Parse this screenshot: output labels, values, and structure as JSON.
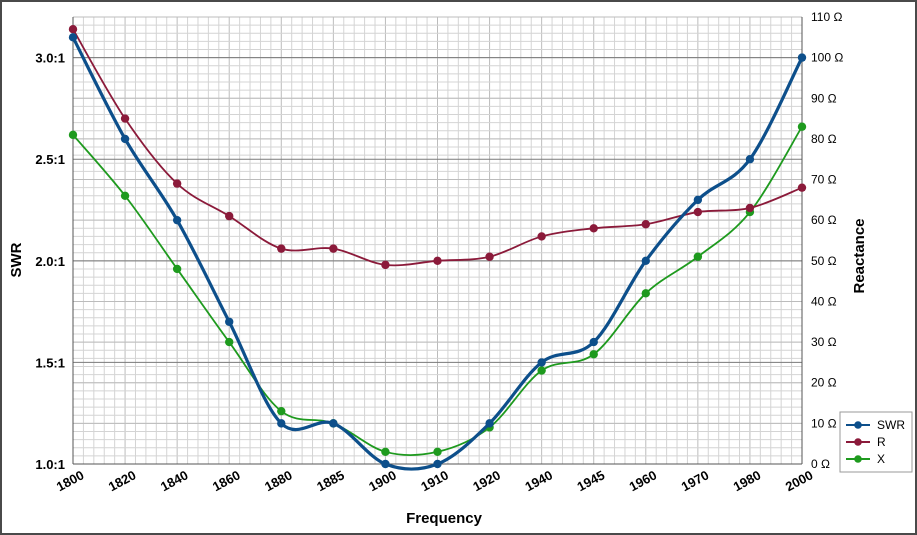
{
  "chart_data": {
    "type": "line",
    "xlabel": "Frequency",
    "ylabel": "SWR",
    "y2label": "Reactance",
    "categories": [
      "1800",
      "1820",
      "1840",
      "1860",
      "1880",
      "1885",
      "1900",
      "1910",
      "1920",
      "1940",
      "1945",
      "1960",
      "1970",
      "1980",
      "2000"
    ],
    "y_ticks": [
      "1.0:1",
      "1.5:1",
      "2.0:1",
      "2.5:1",
      "3.0:1"
    ],
    "y_tick_values": [
      1.0,
      1.5,
      2.0,
      2.5,
      3.0
    ],
    "ylim": [
      1.0,
      3.2
    ],
    "y2_ticks": [
      "0 Ω",
      "10 Ω",
      "20 Ω",
      "30 Ω",
      "40 Ω",
      "50 Ω",
      "60 Ω",
      "70 Ω",
      "80 Ω",
      "90 Ω",
      "100 Ω",
      "110 Ω"
    ],
    "y2_tick_values": [
      0,
      10,
      20,
      30,
      40,
      50,
      60,
      70,
      80,
      90,
      100,
      110
    ],
    "y2lim": [
      0,
      110
    ],
    "grid": true,
    "legend_position": "bottom-right",
    "series": [
      {
        "name": "SWR",
        "axis": "left",
        "color": "#0d4f8b",
        "values": [
          3.1,
          2.6,
          2.2,
          1.7,
          1.2,
          1.2,
          1.0,
          1.0,
          1.2,
          1.5,
          1.6,
          2.0,
          2.3,
          2.5,
          3.0
        ]
      },
      {
        "name": "R",
        "axis": "right",
        "color": "#8b1a3a",
        "values": [
          107,
          85,
          69,
          61,
          53,
          53,
          49,
          50,
          51,
          56,
          58,
          59,
          62,
          63,
          68
        ]
      },
      {
        "name": "X",
        "axis": "right",
        "color": "#1e9a1e",
        "values": [
          81,
          66,
          48,
          30,
          13,
          10,
          3,
          3,
          9,
          23,
          27,
          42,
          51,
          62,
          83
        ]
      }
    ]
  }
}
